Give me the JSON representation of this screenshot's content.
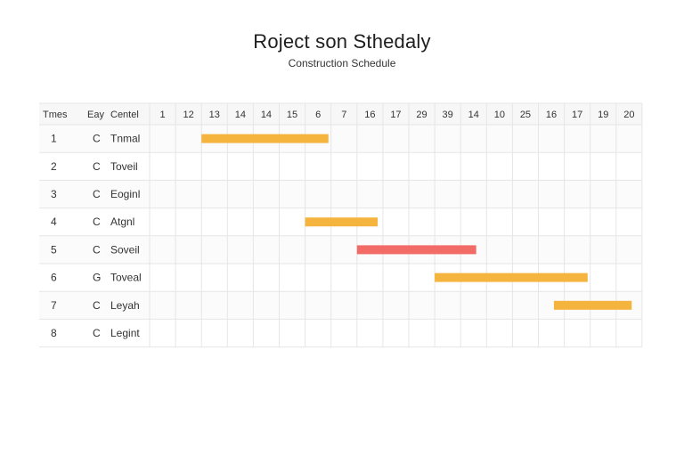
{
  "title": "Roject son Sthedaly",
  "subtitle": "Construction Schedule",
  "chart_data": {
    "type": "gantt",
    "title": "Roject son Sthedaly",
    "subtitle": "Construction Schedule",
    "columns": [
      "Tmes",
      "Eay",
      "Centel"
    ],
    "timeline_labels": [
      "1",
      "12",
      "13",
      "14",
      "14",
      "15",
      "6",
      "7",
      "16",
      "17",
      "29",
      "39",
      "14",
      "10",
      "25",
      "16",
      "17",
      "19",
      "20"
    ],
    "rows": [
      {
        "id": "1",
        "code": "C",
        "name": "Tnmal"
      },
      {
        "id": "2",
        "code": "C",
        "name": "Toveil"
      },
      {
        "id": "3",
        "code": "C",
        "name": "Eoginl"
      },
      {
        "id": "4",
        "code": "C",
        "name": "Atgnl"
      },
      {
        "id": "5",
        "code": "C",
        "name": "Soveil"
      },
      {
        "id": "6",
        "code": "G",
        "name": "Toveal"
      },
      {
        "id": "7",
        "code": "C",
        "name": "Leyah"
      },
      {
        "id": "8",
        "code": "C",
        "name": "Legint"
      }
    ],
    "bars": [
      {
        "row": 0,
        "start": 2.0,
        "end": 6.9,
        "color": "#f5b43e"
      },
      {
        "row": 3,
        "start": 6.0,
        "end": 8.8,
        "color": "#f5b43e"
      },
      {
        "row": 4,
        "start": 8.0,
        "end": 12.6,
        "color": "#f26b67"
      },
      {
        "row": 5,
        "start": 11.0,
        "end": 16.9,
        "color": "#f5b43e"
      },
      {
        "row": 6,
        "start": 15.6,
        "end": 18.6,
        "color": "#f5b43e"
      }
    ],
    "grid": true
  }
}
